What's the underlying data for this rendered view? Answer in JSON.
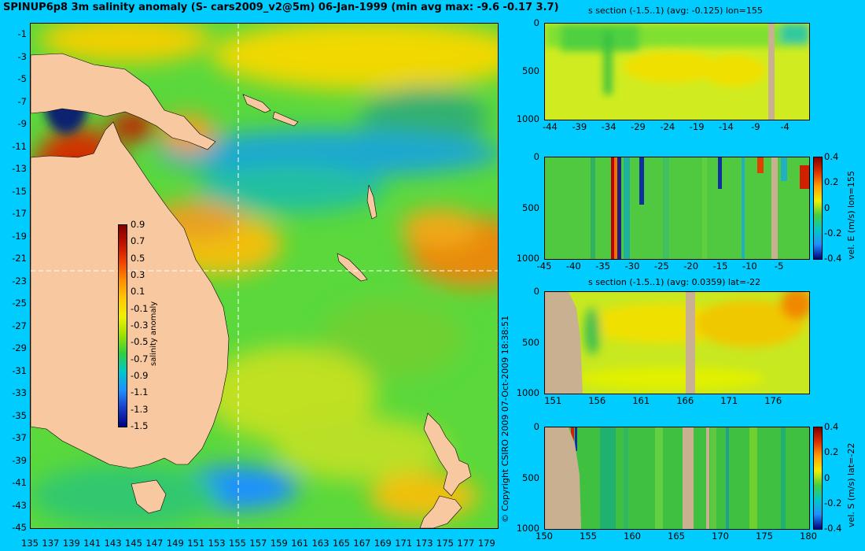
{
  "page": {
    "title": "SPINUP6p8 3m salinity anomaly (S- cars2009_v2@5m) 06-Jan-1999 (min avg max: -9.6 -0.17 3.7)",
    "copyright": "© Copyright CSIRO 2009   07-Oct-2009 18:38:51"
  },
  "colors": {
    "background": "#00ccff",
    "land": "#f8c8a0",
    "section_land": "#c8b090",
    "colormap": [
      "#00007a",
      "#1a3cc8",
      "#1e90ff",
      "#00c8c8",
      "#00d040",
      "#a0e000",
      "#f0f000",
      "#ffb400",
      "#ff6400",
      "#d01000",
      "#800000"
    ]
  },
  "chart_data": [
    {
      "type": "heatmap",
      "name": "salinity_map",
      "title": "SPINUP6p8 3m salinity anomaly (S- cars2009_v2@5m) 06-Jan-1999 (min avg max: -9.6 -0.17 3.7)",
      "xlim": [
        135,
        180
      ],
      "ylim": [
        -45,
        0
      ],
      "xticks": [
        135,
        137,
        139,
        141,
        143,
        145,
        147,
        149,
        151,
        153,
        155,
        157,
        159,
        161,
        163,
        165,
        167,
        169,
        171,
        173,
        175,
        177,
        179
      ],
      "yticks": [
        -1,
        -3,
        -5,
        -7,
        -9,
        -11,
        -13,
        -15,
        -17,
        -19,
        -21,
        -23,
        -25,
        -27,
        -29,
        -31,
        -33,
        -35,
        -37,
        -39,
        -41,
        -43,
        -45
      ],
      "section_lon": 155,
      "section_lat": -22,
      "colorbar": {
        "label": "salinity anomaly",
        "ticks": [
          0.9,
          0.7,
          0.5,
          0.3,
          0.1,
          -0.1,
          -0.3,
          -0.5,
          -0.7,
          -0.9,
          -1.1,
          -1.3,
          -1.5
        ],
        "range": [
          -1.5,
          0.9
        ]
      }
    },
    {
      "type": "heatmap",
      "name": "s_section_lon155",
      "title": "s section (-1.5..1) (avg: -0.125) lon=155",
      "xlim": [
        -45,
        0
      ],
      "ylim": [
        1000,
        0
      ],
      "xticks": [
        -44,
        -39,
        -34,
        -29,
        -24,
        -19,
        -14,
        -9,
        -4
      ],
      "yticks": [
        0,
        500,
        1000
      ]
    },
    {
      "type": "heatmap",
      "name": "velE_section_lon155",
      "title": "",
      "xlim": [
        -45,
        0
      ],
      "ylim": [
        1000,
        0
      ],
      "xticks": [
        -45,
        -40,
        -35,
        -30,
        -25,
        -20,
        -15,
        -10,
        -5
      ],
      "yticks": [
        0,
        500,
        1000
      ],
      "colorbar": {
        "label": "vel. E (m/s) lon=155",
        "ticks": [
          0.4,
          0.2,
          0,
          -0.2,
          -0.4
        ],
        "range": [
          -0.4,
          0.4
        ]
      }
    },
    {
      "type": "heatmap",
      "name": "s_section_lat22",
      "title": "s section (-1.5..1) (avg: 0.0359) lat=-22",
      "xlim": [
        150,
        180
      ],
      "ylim": [
        1000,
        0
      ],
      "xticks": [
        151,
        156,
        161,
        166,
        171,
        176
      ],
      "yticks": [
        0,
        500,
        1000
      ]
    },
    {
      "type": "heatmap",
      "name": "velS_section_lat22",
      "title": "",
      "xlim": [
        150,
        180
      ],
      "ylim": [
        1000,
        0
      ],
      "xticks": [
        150,
        155,
        160,
        165,
        170,
        175,
        180
      ],
      "yticks": [
        0,
        500,
        1000
      ],
      "colorbar": {
        "label": "vel. S (m/s) lat=-22",
        "ticks": [
          0.4,
          0.2,
          0,
          -0.2,
          -0.4
        ],
        "range": [
          -0.4,
          0.4
        ]
      }
    }
  ]
}
